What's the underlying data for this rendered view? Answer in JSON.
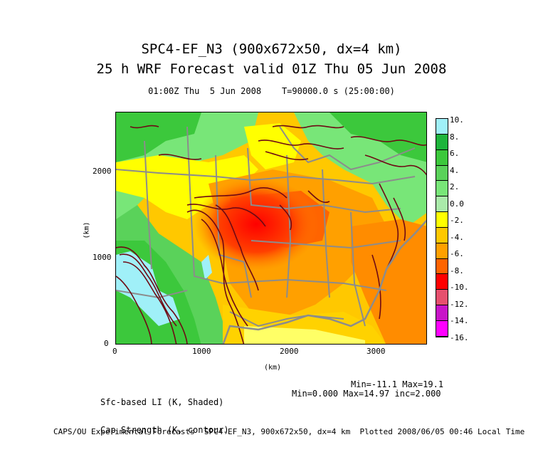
{
  "header": {
    "title_line1": "SPC4-EF_N3 (900x672x50, dx=4 km)",
    "title_line2": "25 h WRF Forecast valid 01Z Thu 05 Jun 2008",
    "subtitle": "01:00Z Thu  5 Jun 2008    T=90000.0 s (25:00:00)"
  },
  "axes": {
    "x_ticks": [
      "0",
      "1000",
      "2000",
      "3000"
    ],
    "y_ticks": [
      "0",
      "1000",
      "2000"
    ],
    "x_label": "(km)",
    "y_label": "(km)"
  },
  "colorbar": {
    "labels": [
      "10.",
      "8.",
      "6.",
      "4.",
      "2.",
      "0.0",
      "-2.",
      "-4.",
      "-6.",
      "-8.",
      "-10.",
      "-12.",
      "-14.",
      "-16."
    ],
    "colors": [
      "#a0f0f8",
      "#1eb43c",
      "#3cc83c",
      "#5ad25a",
      "#78e678",
      "#aaeaaa",
      "#ffff00",
      "#ffc800",
      "#ffa000",
      "#ff6400",
      "#ff0000",
      "#e6506e",
      "#c814c8",
      "#ff00ff"
    ]
  },
  "legend": {
    "left_line1": "Sfc-based LI (K, Shaded)",
    "left_line2": "Cap Strength (K, contour)",
    "right_line1": "Min=-11.1 Max=19.1",
    "right_line2": "Min=0.000 Max=14.97 inc=2.000"
  },
  "footer": "CAPS/OU Experimental Forecasts  SPC4-EF_N3, 900x672x50, dx=4 km  Plotted 2008/06/05 00:46 Local Time"
}
